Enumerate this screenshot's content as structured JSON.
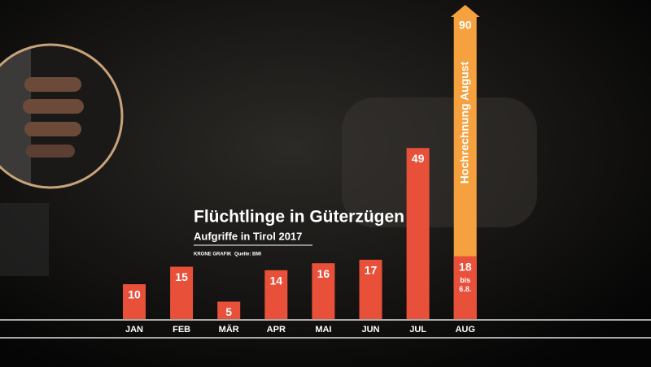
{
  "chart_data": {
    "type": "bar",
    "title": "Flüchtlinge in Güterzügen",
    "subtitle": "Aufgriffe in Tirol 2017",
    "credit": "KRONE GRAFIK",
    "source": "Quelle: BMI",
    "categories": [
      "JAN",
      "FEB",
      "MÄR",
      "APR",
      "MAI",
      "JUN",
      "JUL",
      "AUG"
    ],
    "series": [
      {
        "color": "#e8503a",
        "values": [
          10,
          15,
          5,
          14,
          16,
          17,
          49,
          18
        ]
      },
      {
        "color": "#f5a13f",
        "label": "Hochrechnung August",
        "values": [
          null,
          null,
          null,
          null,
          null,
          null,
          null,
          90
        ]
      }
    ],
    "annotation": [
      "bis",
      "6.8."
    ]
  }
}
